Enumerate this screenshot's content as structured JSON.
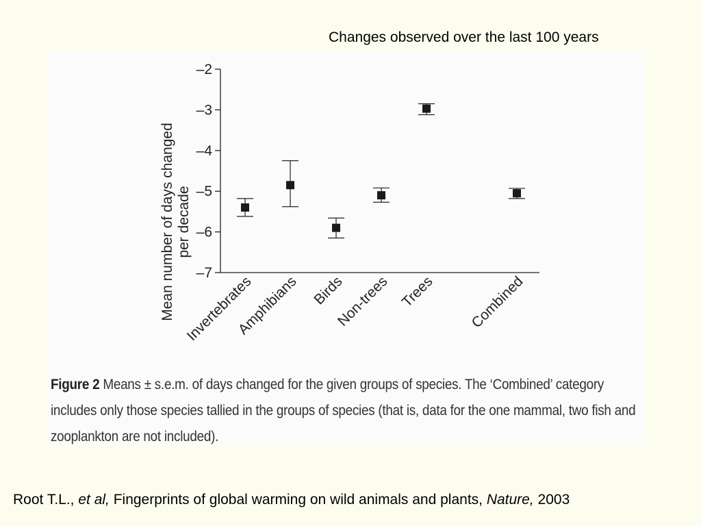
{
  "header": {
    "caption": "Changes observed over the last 100 years"
  },
  "chart_data": {
    "type": "scatter",
    "error_bars": true,
    "ylabel_line1": "Mean number of days changed",
    "ylabel_line2": "per decade",
    "ylim": [
      -7,
      -2
    ],
    "yticks": [
      "–2",
      "–3",
      "–4",
      "–5",
      "–6",
      "–7"
    ],
    "ytick_values": [
      -2,
      -3,
      -4,
      -5,
      -6,
      -7
    ],
    "categories": [
      "Invertebrates",
      "Amphibians",
      "Birds",
      "Non-trees",
      "Trees",
      "Combined"
    ],
    "values": [
      -5.4,
      -4.85,
      -5.9,
      -5.1,
      -2.97,
      -5.05
    ],
    "err_low": [
      -5.62,
      -5.38,
      -6.15,
      -5.27,
      -3.12,
      -5.18
    ],
    "err_high": [
      -5.18,
      -4.25,
      -5.66,
      -4.92,
      -2.85,
      -4.93
    ],
    "grid": false,
    "marker_color": "#1a1a1a"
  },
  "figure_caption": {
    "label": "Figure 2",
    "text": " Means ± s.e.m. of days changed for the given groups of species. The ‘Combined’ category includes only those species tallied in the groups of species (that is, data for the one mammal, two fish and zooplankton are not included)."
  },
  "citation": {
    "authors": "Root T.L., ",
    "etal": "et al,",
    "title": " Fingerprints of global warming on wild animals and plants, ",
    "journal": "Nature,",
    "year": " 2003"
  }
}
